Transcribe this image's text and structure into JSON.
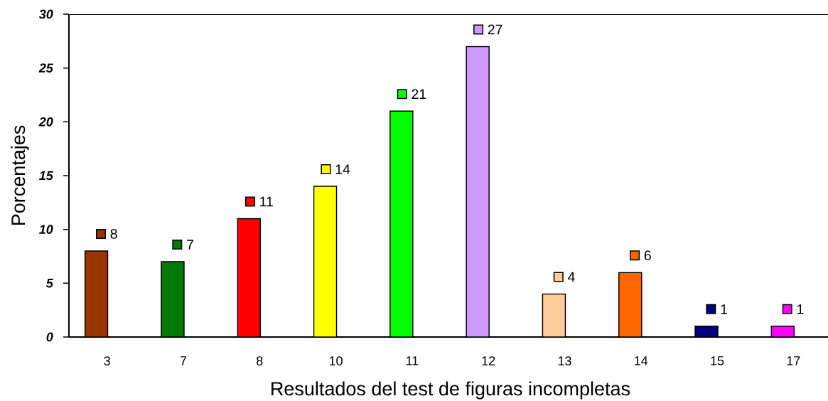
{
  "chart_data": {
    "type": "bar",
    "xlabel": "Resultados del test de figuras incompletas",
    "ylabel": "Porcentajes",
    "categories": [
      "3",
      "7",
      "8",
      "10",
      "11",
      "12",
      "13",
      "14",
      "15",
      "17"
    ],
    "values": [
      8,
      7,
      11,
      14,
      21,
      27,
      4,
      6,
      1,
      1
    ],
    "colors": [
      "#993300",
      "#007A00",
      "#FF0000",
      "#FFFF00",
      "#00FF00",
      "#CC99FF",
      "#FFCC99",
      "#FF6600",
      "#000080",
      "#FF00FF"
    ],
    "ylim": [
      0,
      30
    ],
    "yticks": [
      0,
      5,
      10,
      15,
      20,
      25,
      30
    ],
    "data_labels": true
  }
}
